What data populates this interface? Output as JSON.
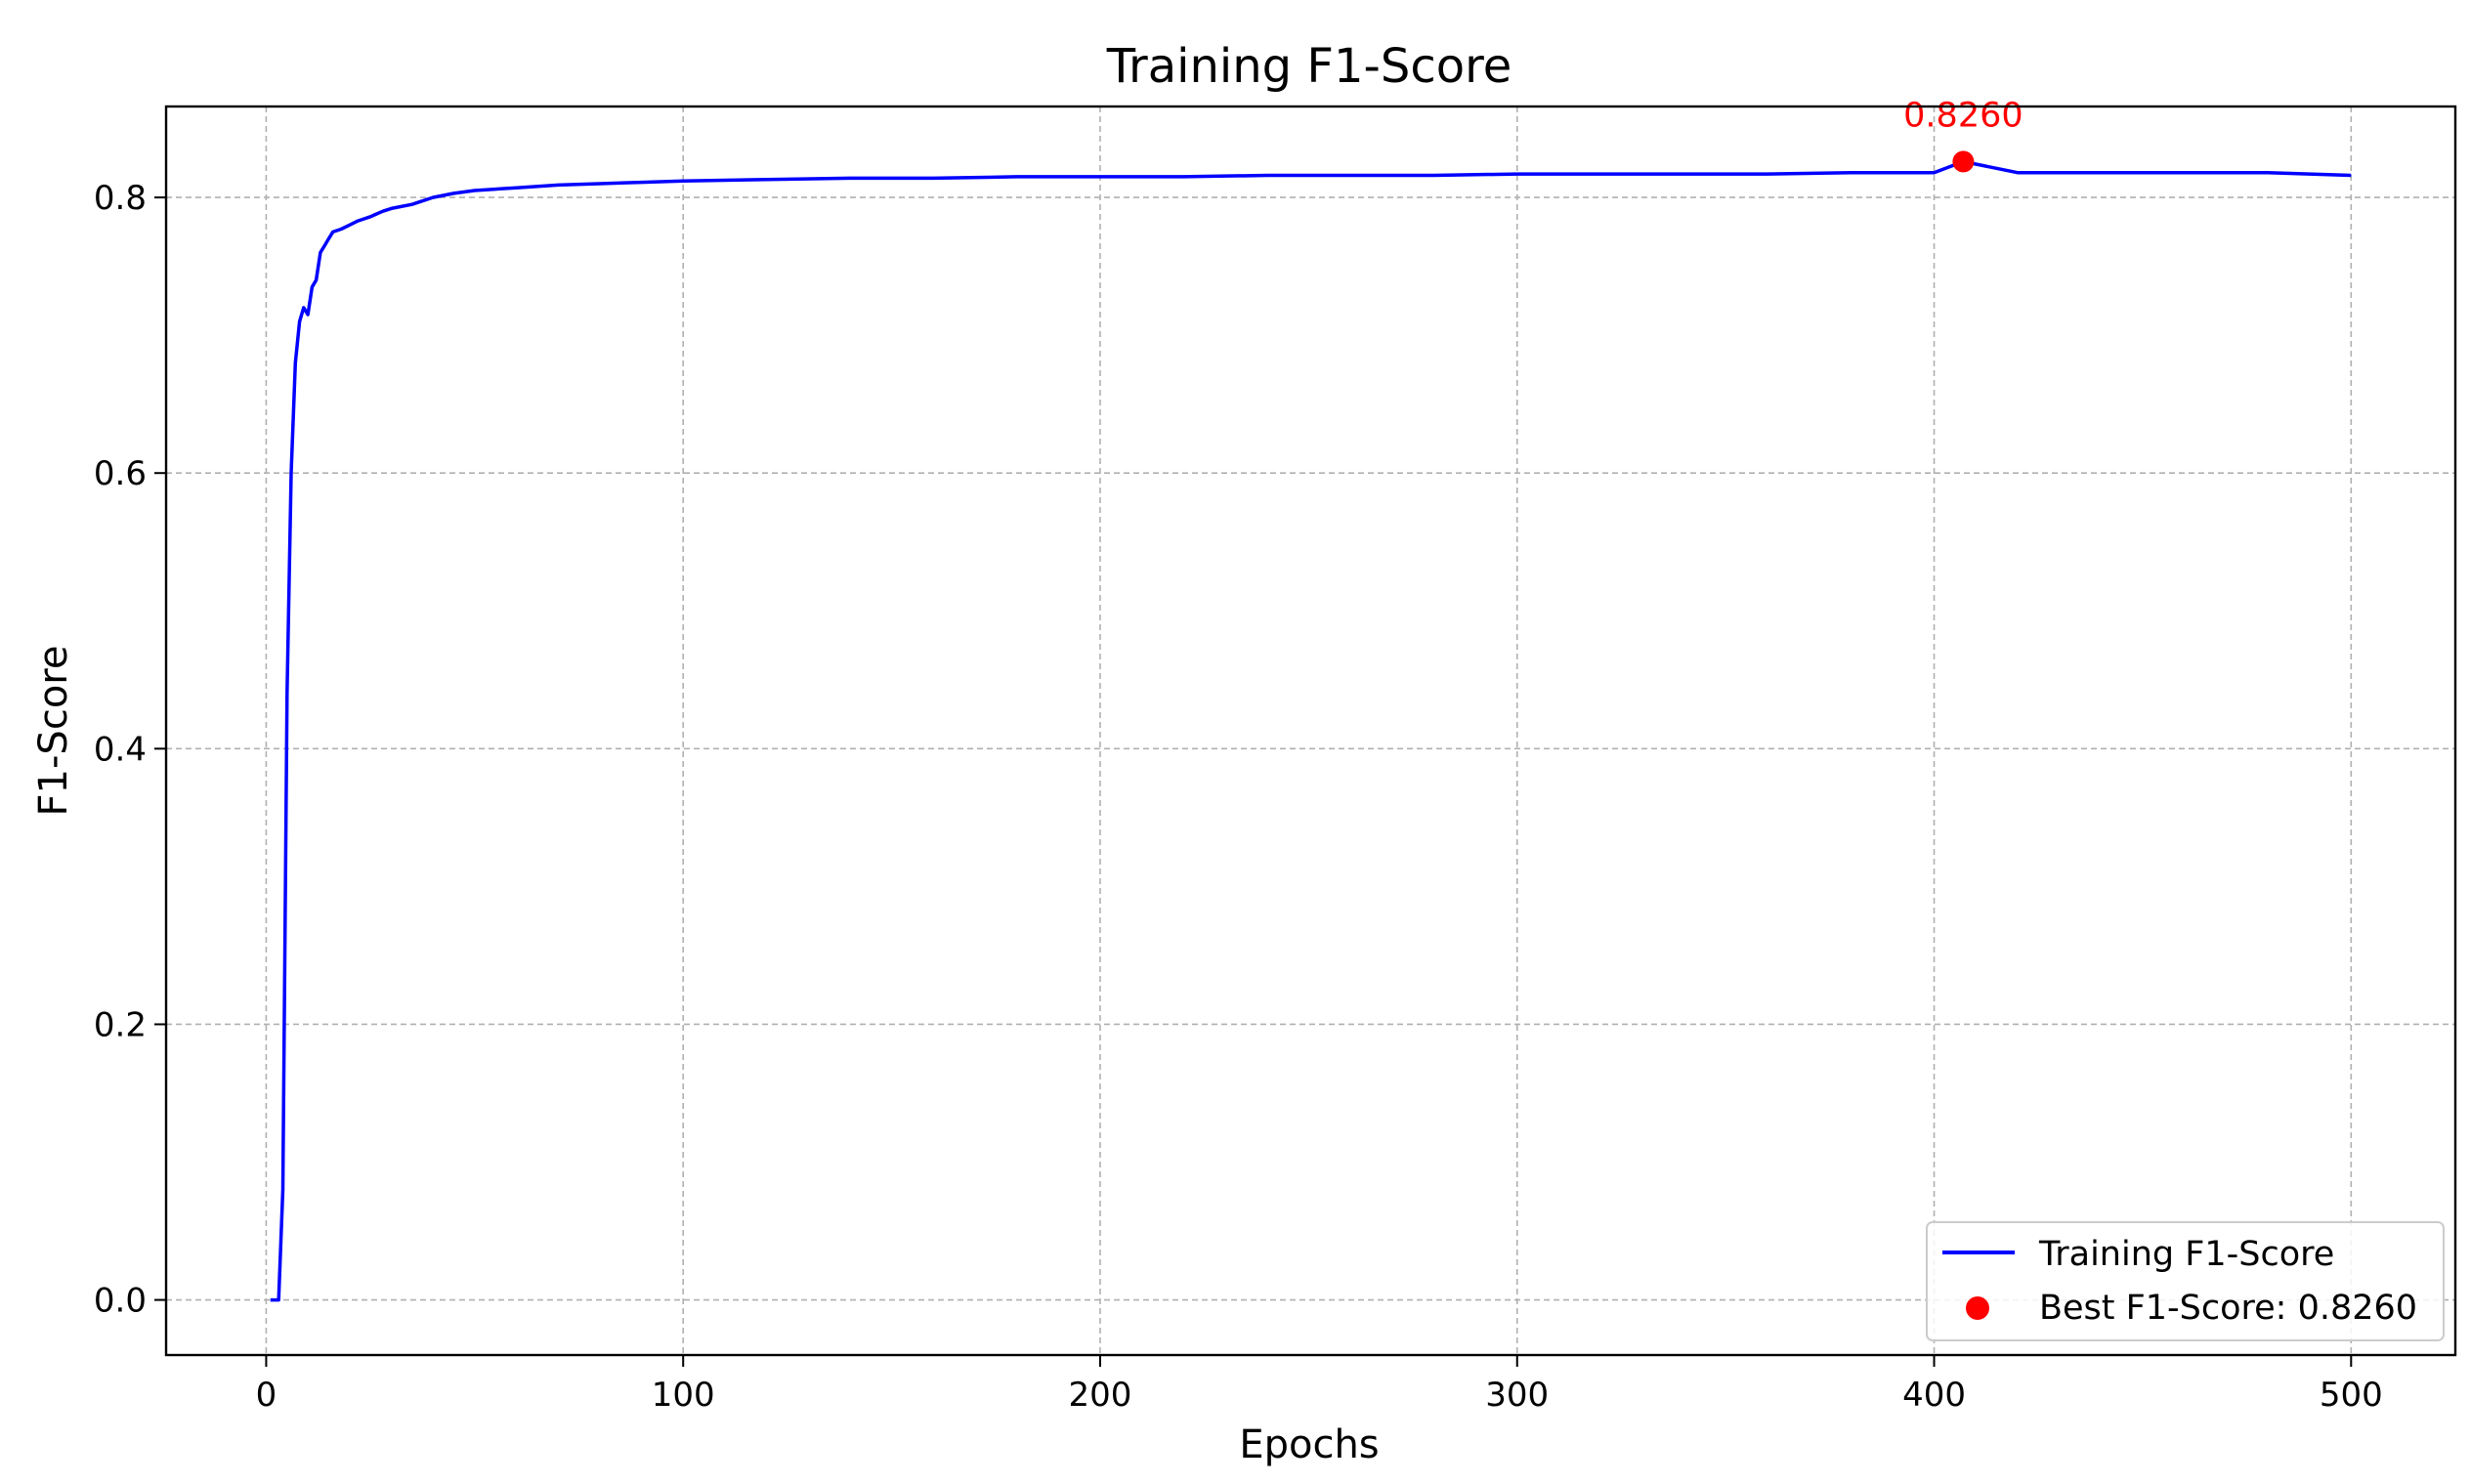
{
  "chart_data": {
    "type": "line",
    "title": "Training F1-Score",
    "xlabel": "Epochs",
    "ylabel": "F1-Score",
    "xlim": [
      -24,
      525
    ],
    "ylim": [
      -0.04,
      0.866
    ],
    "x_ticks": [
      0,
      100,
      200,
      300,
      400,
      500
    ],
    "y_ticks": [
      0.0,
      0.2,
      0.4,
      0.6,
      0.8
    ],
    "x_tick_labels": [
      "0",
      "100",
      "200",
      "300",
      "400",
      "500"
    ],
    "y_tick_labels": [
      "0.0",
      "0.2",
      "0.4",
      "0.6",
      "0.8"
    ],
    "grid": true,
    "legend_position": "bottom-right",
    "series": [
      {
        "name": "Training F1-Score",
        "color": "#0000ff",
        "x": [
          1,
          2,
          3,
          4,
          5,
          6,
          7,
          8,
          9,
          10,
          11,
          12,
          13,
          14,
          15,
          16,
          18,
          20,
          22,
          25,
          28,
          30,
          35,
          40,
          45,
          50,
          60,
          70,
          80,
          90,
          100,
          120,
          140,
          160,
          180,
          200,
          220,
          240,
          260,
          280,
          300,
          320,
          340,
          360,
          380,
          400,
          407,
          420,
          440,
          460,
          480,
          500
        ],
        "values": [
          0.0,
          0.0,
          0.0,
          0.08,
          0.44,
          0.6,
          0.68,
          0.71,
          0.72,
          0.715,
          0.735,
          0.74,
          0.76,
          0.765,
          0.77,
          0.775,
          0.777,
          0.78,
          0.783,
          0.786,
          0.79,
          0.792,
          0.795,
          0.8,
          0.803,
          0.805,
          0.807,
          0.809,
          0.81,
          0.811,
          0.812,
          0.813,
          0.814,
          0.814,
          0.815,
          0.815,
          0.815,
          0.816,
          0.816,
          0.816,
          0.817,
          0.817,
          0.817,
          0.817,
          0.818,
          0.818,
          0.826,
          0.818,
          0.818,
          0.818,
          0.818,
          0.816
        ]
      },
      {
        "name": "Best F1-Score: 0.8260",
        "type": "scatter",
        "color": "#ff0000",
        "x": [
          407
        ],
        "values": [
          0.826
        ]
      }
    ],
    "annotations": [
      {
        "text": "0.8260",
        "x": 407,
        "y": 0.826,
        "color": "#ff0000"
      }
    ]
  }
}
